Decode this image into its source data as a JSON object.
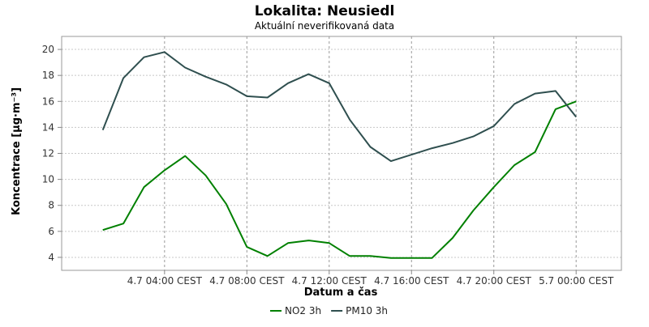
{
  "chart_data": {
    "type": "line",
    "title": "Lokalita: Neusiedl",
    "subtitle": "Aktuální neverifikovaná data",
    "xlabel": "Datum a čas",
    "ylabel": "Koncentrace [µg·m⁻³]",
    "ylim": [
      3,
      21
    ],
    "yticks": [
      4,
      6,
      8,
      10,
      12,
      14,
      16,
      18,
      20
    ],
    "xlim": [
      -2,
      25.2
    ],
    "x_tick_positions": [
      3,
      7,
      11,
      15,
      19,
      23
    ],
    "x_tick_labels": [
      "4.7 04:00 CEST",
      "4.7 08:00 CEST",
      "4.7 12:00 CEST",
      "4.7 16:00 CEST",
      "4.7 20:00 CEST",
      "5.7 00:00 CEST"
    ],
    "grid": true,
    "legend_position": "bottom",
    "x": [
      0,
      1,
      2,
      3,
      4,
      5,
      6,
      7,
      8,
      9,
      10,
      11,
      12,
      13,
      14,
      15,
      16,
      17,
      18,
      19,
      20,
      21,
      22,
      23
    ],
    "series": [
      {
        "name": "NO2 3h",
        "color": "#008000",
        "values": [
          6.1,
          6.6,
          9.4,
          10.7,
          11.8,
          10.3,
          8.1,
          4.8,
          4.1,
          5.1,
          5.3,
          5.1,
          4.1,
          4.1,
          3.95,
          3.95,
          3.95,
          5.5,
          7.6,
          9.4,
          11.1,
          12.1,
          15.4,
          16.0
        ]
      },
      {
        "name": "PM10 3h",
        "color": "#2f4f4f",
        "values": [
          13.8,
          17.8,
          19.4,
          19.8,
          18.6,
          17.9,
          17.3,
          16.4,
          16.3,
          17.4,
          18.1,
          17.4,
          14.6,
          12.5,
          11.4,
          11.9,
          12.4,
          12.8,
          13.3,
          14.1,
          15.8,
          16.6,
          16.8,
          14.8
        ]
      }
    ]
  }
}
